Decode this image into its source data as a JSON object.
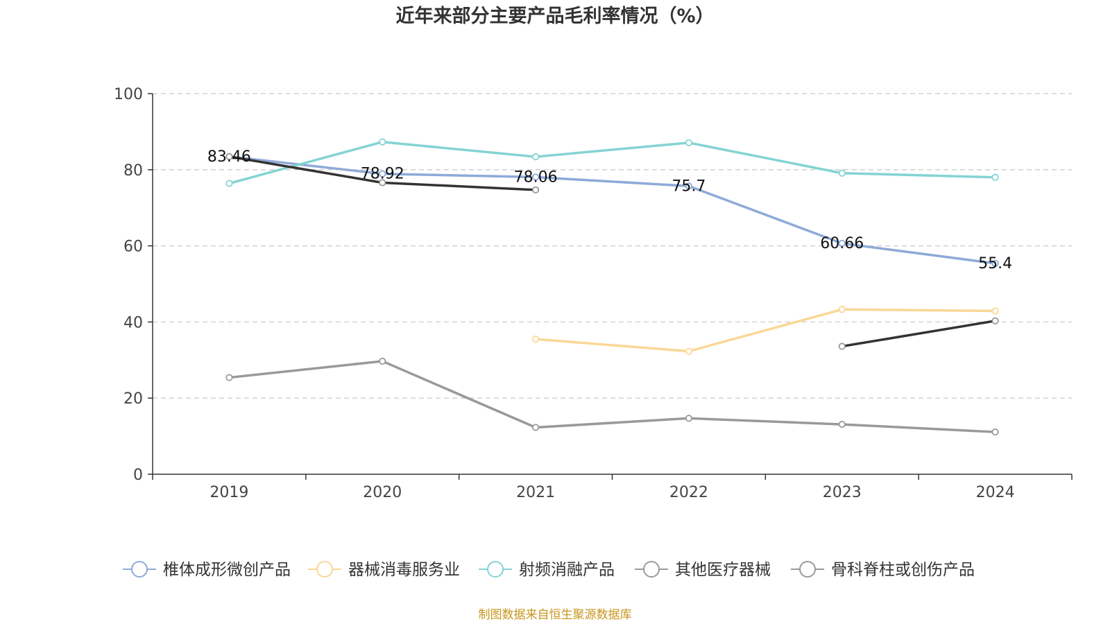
{
  "chart_data": {
    "type": "line",
    "title": "近年来部分主要产品毛利率情况（%）",
    "categories": [
      "2019",
      "2020",
      "2021",
      "2022",
      "2023",
      "2024"
    ],
    "ylim": [
      0,
      100
    ],
    "yticks": [
      0,
      20,
      40,
      60,
      80,
      100
    ],
    "grid": true,
    "legend_position": "bottom",
    "series": [
      {
        "name": "椎体成形微创产品",
        "color": "#8eaad8",
        "values": [
          83.46,
          78.92,
          78.06,
          75.7,
          60.66,
          55.4
        ],
        "labels": [
          "83.46",
          "78.92",
          "78.06",
          "75.7",
          "60.66",
          "55.4"
        ]
      },
      {
        "name": "器械消毒服务业",
        "color": "#fad796",
        "values": [
          null,
          null,
          35.5,
          32.3,
          43.3,
          42.9
        ]
      },
      {
        "name": "射频消融产品",
        "color": "#85d3d4",
        "values": [
          76.4,
          87.3,
          83.4,
          87.1,
          79.1,
          78.0
        ]
      },
      {
        "name": "其他医疗器械",
        "color": "#999999",
        "values": [
          25.4,
          29.7,
          12.3,
          14.7,
          13.1,
          11.1
        ]
      },
      {
        "name": "骨科脊柱或创伤产品",
        "color": "#999999",
        "line_color": "#333333",
        "values": [
          83.46,
          76.6,
          74.7,
          null,
          33.6,
          40.3
        ]
      }
    ],
    "source": "制图数据来自恒生聚源数据库"
  }
}
